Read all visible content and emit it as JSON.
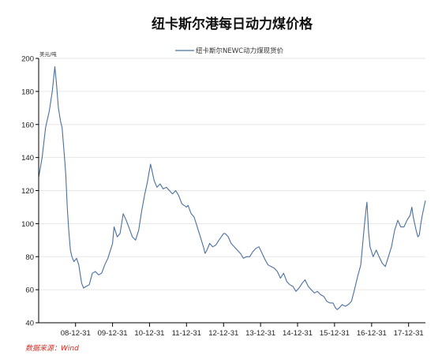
{
  "chart_data": {
    "type": "line",
    "title": "纽卡斯尔港每日动力煤价格",
    "unit_label": "美元/吨",
    "source": "数据来源：Wind",
    "ylim": [
      40,
      200
    ],
    "y_ticks": [
      40,
      60,
      80,
      100,
      120,
      140,
      160,
      180,
      200
    ],
    "x_tick_labels": [
      "08-12-31",
      "09-12-31",
      "10-12-31",
      "11-12-31",
      "12-12-31",
      "13-12-31",
      "14-12-31",
      "15-12-31",
      "16-12-31",
      "17-12-31"
    ],
    "x_range": [
      "2008-01-02",
      "2018-06-15"
    ],
    "legend_position": "top-center",
    "grid": "horizontal",
    "series": [
      {
        "name": "纽卡斯尔NEWC动力煤现货价",
        "color": "#4a6fa0",
        "points": [
          [
            "2008-01-02",
            128
          ],
          [
            "2008-02-05",
            140
          ],
          [
            "2008-03-10",
            158
          ],
          [
            "2008-04-15",
            168
          ],
          [
            "2008-05-15",
            180
          ],
          [
            "2008-06-10",
            195
          ],
          [
            "2008-06-25",
            185
          ],
          [
            "2008-07-15",
            170
          ],
          [
            "2008-08-05",
            162
          ],
          [
            "2008-08-20",
            158
          ],
          [
            "2008-09-10",
            142
          ],
          [
            "2008-09-25",
            130
          ],
          [
            "2008-10-10",
            110
          ],
          [
            "2008-10-25",
            96
          ],
          [
            "2008-11-10",
            84
          ],
          [
            "2008-11-25",
            80
          ],
          [
            "2008-12-15",
            77
          ],
          [
            "2009-01-10",
            79
          ],
          [
            "2009-02-01",
            75
          ],
          [
            "2009-03-01",
            64
          ],
          [
            "2009-03-20",
            61
          ],
          [
            "2009-04-15",
            62
          ],
          [
            "2009-05-15",
            63
          ],
          [
            "2009-06-15",
            70
          ],
          [
            "2009-07-15",
            71
          ],
          [
            "2009-08-15",
            69
          ],
          [
            "2009-09-15",
            70
          ],
          [
            "2009-10-15",
            75
          ],
          [
            "2009-11-15",
            79
          ],
          [
            "2009-12-31",
            88
          ],
          [
            "2010-01-15",
            98
          ],
          [
            "2010-02-15",
            92
          ],
          [
            "2010-03-15",
            94
          ],
          [
            "2010-04-15",
            106
          ],
          [
            "2010-05-15",
            102
          ],
          [
            "2010-06-15",
            97
          ],
          [
            "2010-07-15",
            92
          ],
          [
            "2010-08-15",
            90
          ],
          [
            "2010-09-15",
            96
          ],
          [
            "2010-10-15",
            108
          ],
          [
            "2010-11-15",
            118
          ],
          [
            "2010-12-10",
            125
          ],
          [
            "2011-01-10",
            136
          ],
          [
            "2011-01-25",
            132
          ],
          [
            "2011-02-15",
            126
          ],
          [
            "2011-03-15",
            122
          ],
          [
            "2011-04-15",
            124
          ],
          [
            "2011-05-15",
            121
          ],
          [
            "2011-06-15",
            122
          ],
          [
            "2011-07-15",
            120
          ],
          [
            "2011-08-15",
            118
          ],
          [
            "2011-09-15",
            120
          ],
          [
            "2011-10-15",
            117
          ],
          [
            "2011-11-15",
            112
          ],
          [
            "2011-12-31",
            110
          ],
          [
            "2012-01-15",
            111
          ],
          [
            "2012-02-15",
            106
          ],
          [
            "2012-03-15",
            104
          ],
          [
            "2012-04-15",
            98
          ],
          [
            "2012-05-15",
            92
          ],
          [
            "2012-06-15",
            86
          ],
          [
            "2012-07-01",
            82
          ],
          [
            "2012-07-20",
            84
          ],
          [
            "2012-08-15",
            88
          ],
          [
            "2012-09-15",
            86
          ],
          [
            "2012-10-15",
            87
          ],
          [
            "2012-11-15",
            90
          ],
          [
            "2012-12-31",
            94
          ],
          [
            "2013-01-15",
            94
          ],
          [
            "2013-02-15",
            92
          ],
          [
            "2013-03-15",
            88
          ],
          [
            "2013-04-15",
            86
          ],
          [
            "2013-05-15",
            84
          ],
          [
            "2013-06-15",
            82
          ],
          [
            "2013-07-15",
            79
          ],
          [
            "2013-08-15",
            80
          ],
          [
            "2013-09-15",
            80
          ],
          [
            "2013-10-15",
            83
          ],
          [
            "2013-11-15",
            85
          ],
          [
            "2013-12-15",
            86
          ],
          [
            "2014-01-15",
            82
          ],
          [
            "2014-02-15",
            78
          ],
          [
            "2014-03-15",
            75
          ],
          [
            "2014-04-15",
            74
          ],
          [
            "2014-05-15",
            73
          ],
          [
            "2014-06-15",
            71
          ],
          [
            "2014-07-15",
            67
          ],
          [
            "2014-08-15",
            70
          ],
          [
            "2014-09-15",
            65
          ],
          [
            "2014-10-15",
            63
          ],
          [
            "2014-11-15",
            62
          ],
          [
            "2014-12-15",
            59
          ],
          [
            "2015-01-15",
            61
          ],
          [
            "2015-02-15",
            64
          ],
          [
            "2015-03-15",
            66
          ],
          [
            "2015-04-15",
            62
          ],
          [
            "2015-05-15",
            60
          ],
          [
            "2015-06-15",
            58
          ],
          [
            "2015-07-15",
            59
          ],
          [
            "2015-08-15",
            57
          ],
          [
            "2015-09-15",
            56
          ],
          [
            "2015-10-15",
            53
          ],
          [
            "2015-11-15",
            52
          ],
          [
            "2015-12-15",
            52
          ],
          [
            "2016-01-10",
            49
          ],
          [
            "2016-01-25",
            48
          ],
          [
            "2016-02-15",
            49
          ],
          [
            "2016-03-15",
            51
          ],
          [
            "2016-04-15",
            50
          ],
          [
            "2016-05-15",
            51
          ],
          [
            "2016-06-15",
            53
          ],
          [
            "2016-07-15",
            60
          ],
          [
            "2016-08-15",
            68
          ],
          [
            "2016-09-15",
            75
          ],
          [
            "2016-10-15",
            95
          ],
          [
            "2016-11-05",
            108
          ],
          [
            "2016-11-15",
            113
          ],
          [
            "2016-12-01",
            95
          ],
          [
            "2016-12-15",
            86
          ],
          [
            "2017-01-15",
            80
          ],
          [
            "2017-02-15",
            84
          ],
          [
            "2017-03-15",
            80
          ],
          [
            "2017-04-15",
            76
          ],
          [
            "2017-05-15",
            74
          ],
          [
            "2017-06-15",
            80
          ],
          [
            "2017-07-15",
            86
          ],
          [
            "2017-08-15",
            96
          ],
          [
            "2017-09-15",
            102
          ],
          [
            "2017-10-15",
            98
          ],
          [
            "2017-11-15",
            98
          ],
          [
            "2017-12-15",
            102
          ],
          [
            "2018-01-15",
            105
          ],
          [
            "2018-02-01",
            110
          ],
          [
            "2018-02-15",
            104
          ],
          [
            "2018-03-15",
            96
          ],
          [
            "2018-04-01",
            92
          ],
          [
            "2018-04-15",
            93
          ],
          [
            "2018-05-01",
            100
          ],
          [
            "2018-05-15",
            105
          ],
          [
            "2018-06-01",
            110
          ],
          [
            "2018-06-15",
            114
          ]
        ]
      }
    ]
  }
}
